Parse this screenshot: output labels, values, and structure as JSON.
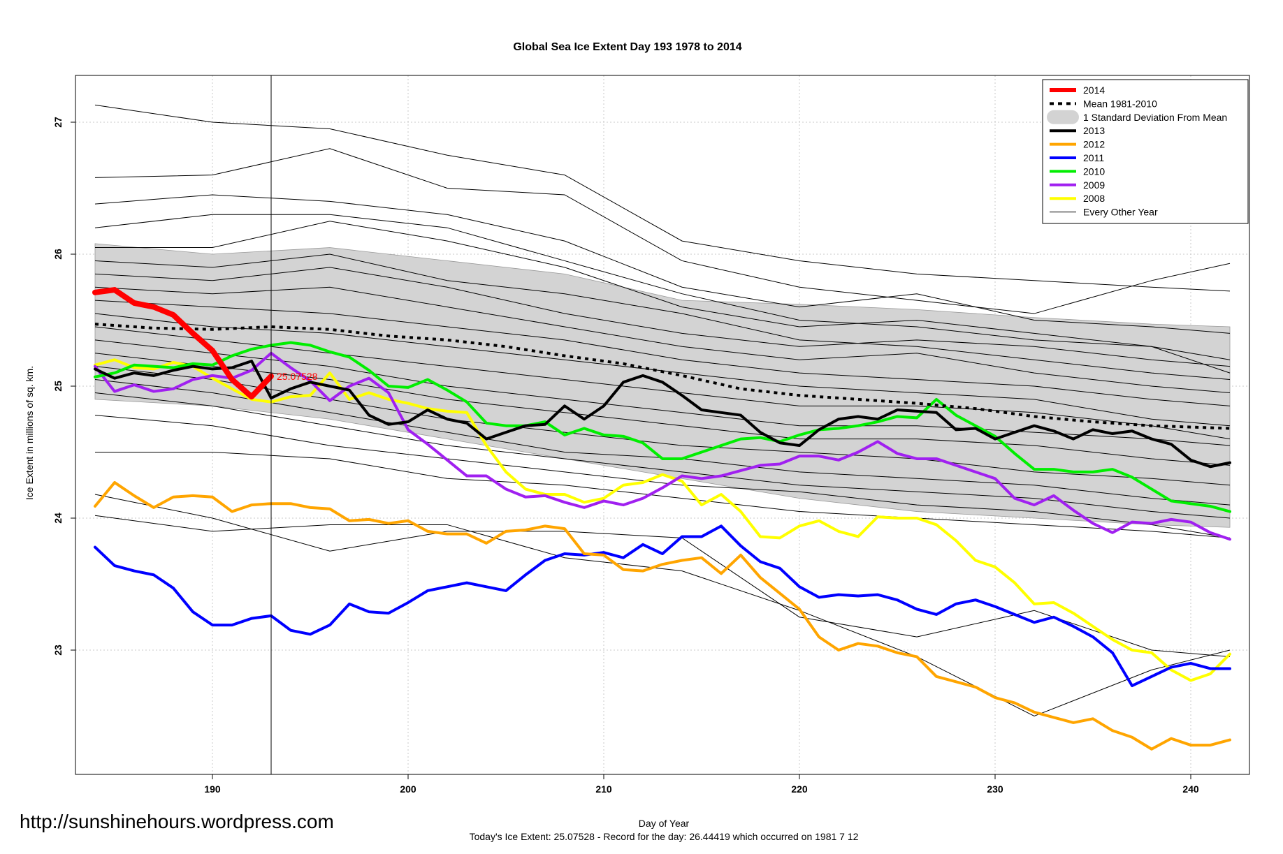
{
  "chart_data": {
    "type": "line",
    "title": "Global Sea Ice Extent Day 193 1978 to 2014",
    "xlabel": "Day of Year",
    "ylabel": "Ice Extent in millions of sq. km.",
    "xlim": [
      184,
      242
    ],
    "ylim": [
      22.1,
      27.4
    ],
    "xticks": [
      190,
      200,
      210,
      220,
      230,
      240
    ],
    "yticks": [
      23,
      24,
      25,
      26,
      27
    ],
    "grid": true,
    "legend_position": "top-right",
    "current_day": 193,
    "annotation": {
      "x": 193,
      "y": 25.07528,
      "text": "25.07528",
      "color": "#ff0000"
    },
    "url_text": "http://sunshinehours.wordpress.com",
    "footer": "Today's Ice Extent: 25.07528  - Record for the day: 26.44419 which occurred on 1981 7 12",
    "std_band": {
      "name": "1 Standard Deviation From Mean",
      "color": "#d3d3d3",
      "x": [
        184,
        190,
        196,
        202,
        208,
        214,
        220,
        226,
        232,
        238,
        242
      ],
      "upper": [
        26.08,
        26.0,
        26.05,
        25.95,
        25.85,
        25.65,
        25.62,
        25.58,
        25.52,
        25.47,
        25.45
      ],
      "lower": [
        24.9,
        24.85,
        24.75,
        24.6,
        24.45,
        24.3,
        24.15,
        24.05,
        24.0,
        23.95,
        23.93
      ]
    },
    "series": [
      {
        "name": "2014",
        "color": "#ff0000",
        "width": 8,
        "dash": "",
        "x": [
          184,
          185,
          186,
          187,
          188,
          189,
          190,
          191,
          192,
          193
        ],
        "y": [
          25.71,
          25.73,
          25.63,
          25.6,
          25.54,
          25.4,
          25.27,
          25.05,
          24.92,
          25.07528
        ]
      },
      {
        "name": "Mean 1981-2010",
        "color": "#000000",
        "width": 4,
        "dash": "5,6",
        "x": [
          184,
          187,
          190,
          193,
          196,
          199,
          202,
          205,
          208,
          211,
          214,
          217,
          220,
          223,
          226,
          229,
          232,
          235,
          238,
          242
        ],
        "y": [
          25.47,
          25.44,
          25.43,
          25.45,
          25.43,
          25.38,
          25.35,
          25.3,
          25.23,
          25.17,
          25.08,
          24.98,
          24.93,
          24.9,
          24.87,
          24.83,
          24.77,
          24.73,
          24.7,
          24.68
        ]
      },
      {
        "name": "1 Standard Deviation From Mean",
        "color": "#d3d3d3",
        "width": 14,
        "dash": "",
        "band": true
      },
      {
        "name": "2013",
        "color": "#000000",
        "width": 4,
        "dash": "",
        "x": [
          184,
          185,
          186,
          187,
          188,
          189,
          190,
          191,
          192,
          193,
          194,
          195,
          196,
          197,
          198,
          199,
          200,
          201,
          202,
          203,
          204,
          205,
          206,
          207,
          208,
          209,
          210,
          211,
          212,
          213,
          214,
          215,
          216,
          217,
          218,
          219,
          220,
          221,
          222,
          223,
          224,
          225,
          226,
          227,
          228,
          229,
          230,
          231,
          232,
          233,
          234,
          235,
          236,
          237,
          238,
          239,
          240,
          241,
          242
        ],
        "y": [
          25.13,
          25.06,
          25.1,
          25.08,
          25.12,
          25.15,
          25.13,
          25.14,
          25.19,
          24.91,
          24.98,
          25.03,
          25.0,
          24.97,
          24.78,
          24.71,
          24.73,
          24.82,
          24.75,
          24.72,
          24.6,
          24.65,
          24.7,
          24.71,
          24.85,
          24.75,
          24.85,
          25.03,
          25.08,
          25.03,
          24.93,
          24.82,
          24.8,
          24.78,
          24.65,
          24.57,
          24.55,
          24.67,
          24.75,
          24.77,
          24.75,
          24.82,
          24.81,
          24.8,
          24.67,
          24.68,
          24.6,
          24.65,
          24.7,
          24.66,
          24.6,
          24.67,
          24.64,
          24.66,
          24.6,
          24.56,
          24.44,
          24.39,
          24.42
        ]
      },
      {
        "name": "2012",
        "color": "#ffa500",
        "width": 4,
        "dash": "",
        "x": [
          184,
          185,
          186,
          187,
          188,
          189,
          190,
          191,
          192,
          193,
          194,
          195,
          196,
          197,
          198,
          199,
          200,
          201,
          202,
          203,
          204,
          205,
          206,
          207,
          208,
          209,
          210,
          211,
          212,
          213,
          214,
          215,
          216,
          217,
          218,
          219,
          220,
          221,
          222,
          223,
          224,
          225,
          226,
          227,
          228,
          229,
          230,
          231,
          232,
          233,
          234,
          235,
          236,
          237,
          238,
          239,
          240,
          241,
          242
        ],
        "y": [
          24.09,
          24.27,
          24.17,
          24.08,
          24.16,
          24.17,
          24.16,
          24.05,
          24.1,
          24.11,
          24.11,
          24.08,
          24.07,
          23.98,
          23.99,
          23.96,
          23.98,
          23.9,
          23.88,
          23.88,
          23.81,
          23.9,
          23.91,
          23.94,
          23.92,
          23.73,
          23.72,
          23.61,
          23.6,
          23.65,
          23.68,
          23.7,
          23.58,
          23.72,
          23.55,
          23.43,
          23.31,
          23.1,
          23.0,
          23.05,
          23.03,
          22.98,
          22.95,
          22.8,
          22.76,
          22.72,
          22.64,
          22.6,
          22.53,
          22.49,
          22.45,
          22.48,
          22.39,
          22.34,
          22.25,
          22.33,
          22.28,
          22.28,
          22.32
        ]
      },
      {
        "name": "2011",
        "color": "#0000ff",
        "width": 4,
        "dash": "",
        "x": [
          184,
          185,
          186,
          187,
          188,
          189,
          190,
          191,
          192,
          193,
          194,
          195,
          196,
          197,
          198,
          199,
          200,
          201,
          202,
          203,
          204,
          205,
          206,
          207,
          208,
          209,
          210,
          211,
          212,
          213,
          214,
          215,
          216,
          217,
          218,
          219,
          220,
          221,
          222,
          223,
          224,
          225,
          226,
          227,
          228,
          229,
          230,
          231,
          232,
          233,
          234,
          235,
          236,
          237,
          238,
          239,
          240,
          241,
          242
        ],
        "y": [
          23.78,
          23.64,
          23.6,
          23.57,
          23.47,
          23.29,
          23.19,
          23.19,
          23.24,
          23.26,
          23.15,
          23.12,
          23.19,
          23.35,
          23.29,
          23.28,
          23.36,
          23.45,
          23.48,
          23.51,
          23.48,
          23.45,
          23.57,
          23.68,
          23.73,
          23.72,
          23.74,
          23.7,
          23.8,
          23.73,
          23.86,
          23.86,
          23.94,
          23.79,
          23.67,
          23.62,
          23.48,
          23.4,
          23.42,
          23.41,
          23.42,
          23.38,
          23.31,
          23.27,
          23.35,
          23.38,
          23.33,
          23.27,
          23.21,
          23.25,
          23.18,
          23.1,
          22.98,
          22.73,
          22.8,
          22.87,
          22.9,
          22.86,
          22.86
        ]
      },
      {
        "name": "2010",
        "color": "#00ee00",
        "width": 4,
        "dash": "",
        "x": [
          184,
          185,
          186,
          187,
          188,
          189,
          190,
          191,
          192,
          193,
          194,
          195,
          196,
          197,
          198,
          199,
          200,
          201,
          202,
          203,
          204,
          205,
          206,
          207,
          208,
          209,
          210,
          211,
          212,
          213,
          214,
          215,
          216,
          217,
          218,
          219,
          220,
          221,
          222,
          223,
          224,
          225,
          226,
          227,
          228,
          229,
          230,
          231,
          232,
          233,
          234,
          235,
          236,
          237,
          238,
          239,
          240,
          241,
          242
        ],
        "y": [
          25.07,
          25.1,
          25.16,
          25.15,
          25.14,
          25.17,
          25.16,
          25.23,
          25.28,
          25.31,
          25.33,
          25.31,
          25.26,
          25.22,
          25.12,
          25.0,
          24.99,
          25.05,
          24.97,
          24.88,
          24.72,
          24.7,
          24.7,
          24.73,
          24.63,
          24.68,
          24.63,
          24.62,
          24.57,
          24.45,
          24.45,
          24.5,
          24.55,
          24.6,
          24.61,
          24.58,
          24.63,
          24.67,
          24.68,
          24.7,
          24.73,
          24.77,
          24.76,
          24.9,
          24.78,
          24.7,
          24.62,
          24.49,
          24.37,
          24.37,
          24.35,
          24.35,
          24.37,
          24.31,
          24.22,
          24.13,
          24.11,
          24.09,
          24.05
        ]
      },
      {
        "name": "2009",
        "color": "#a020f0",
        "width": 4,
        "dash": "",
        "x": [
          184,
          185,
          186,
          187,
          188,
          189,
          190,
          191,
          192,
          193,
          194,
          195,
          196,
          197,
          198,
          199,
          200,
          201,
          202,
          203,
          204,
          205,
          206,
          207,
          208,
          209,
          210,
          211,
          212,
          213,
          214,
          215,
          216,
          217,
          218,
          219,
          220,
          221,
          222,
          223,
          224,
          225,
          226,
          227,
          228,
          229,
          230,
          231,
          232,
          233,
          234,
          235,
          236,
          237,
          238,
          239,
          240,
          241,
          242
        ],
        "y": [
          25.15,
          24.96,
          25.01,
          24.96,
          24.98,
          25.05,
          25.08,
          25.06,
          25.12,
          25.25,
          25.14,
          25.04,
          24.89,
          25.0,
          25.06,
          24.95,
          24.67,
          24.56,
          24.44,
          24.32,
          24.32,
          24.22,
          24.16,
          24.17,
          24.12,
          24.08,
          24.13,
          24.1,
          24.15,
          24.23,
          24.32,
          24.3,
          24.32,
          24.36,
          24.4,
          24.41,
          24.47,
          24.47,
          24.44,
          24.5,
          24.58,
          24.49,
          24.45,
          24.45,
          24.4,
          24.35,
          24.3,
          24.15,
          24.1,
          24.17,
          24.06,
          23.96,
          23.89,
          23.97,
          23.96,
          23.99,
          23.97,
          23.89,
          23.84
        ]
      },
      {
        "name": "2008",
        "color": "#ffff00",
        "width": 4,
        "dash": "",
        "x": [
          184,
          185,
          186,
          187,
          188,
          189,
          190,
          191,
          192,
          193,
          194,
          195,
          196,
          197,
          198,
          199,
          200,
          201,
          202,
          203,
          204,
          205,
          206,
          207,
          208,
          209,
          210,
          211,
          212,
          213,
          214,
          215,
          216,
          217,
          218,
          219,
          220,
          221,
          222,
          223,
          224,
          225,
          226,
          227,
          228,
          229,
          230,
          231,
          232,
          233,
          234,
          235,
          236,
          237,
          238,
          239,
          240,
          241,
          242
        ],
        "y": [
          25.16,
          25.2,
          25.14,
          25.13,
          25.18,
          25.15,
          25.06,
          24.98,
          24.9,
          24.88,
          24.92,
          24.93,
          25.1,
          24.9,
          24.95,
          24.9,
          24.87,
          24.83,
          24.81,
          24.8,
          24.55,
          24.35,
          24.22,
          24.18,
          24.18,
          24.12,
          24.15,
          24.25,
          24.27,
          24.33,
          24.28,
          24.1,
          24.18,
          24.05,
          23.86,
          23.85,
          23.94,
          23.98,
          23.9,
          23.86,
          24.01,
          24.0,
          24.0,
          23.95,
          23.83,
          23.68,
          23.63,
          23.51,
          23.35,
          23.36,
          23.28,
          23.18,
          23.08,
          23.0,
          22.98,
          22.85,
          22.77,
          22.82,
          22.97
        ]
      },
      {
        "name": "Every Other Year",
        "color": "#000000",
        "width": 1,
        "dash": "",
        "legend_only": true
      }
    ],
    "background_years": {
      "color": "#000000",
      "width": 1,
      "x": [
        184,
        190,
        196,
        202,
        208,
        214,
        220,
        226,
        232,
        238,
        242
      ],
      "lines": [
        [
          27.13,
          27.0,
          26.95,
          26.75,
          26.6,
          26.1,
          25.95,
          25.85,
          25.8,
          25.75,
          25.72
        ],
        [
          26.58,
          26.6,
          26.8,
          26.5,
          26.45,
          25.95,
          25.75,
          25.65,
          25.55,
          25.8,
          25.93
        ],
        [
          26.38,
          26.45,
          26.4,
          26.3,
          26.1,
          25.75,
          25.6,
          25.7,
          25.5,
          25.45,
          25.4
        ],
        [
          26.2,
          26.3,
          26.3,
          26.2,
          25.95,
          25.7,
          25.5,
          25.45,
          25.35,
          25.3,
          25.2
        ],
        [
          26.05,
          26.05,
          26.25,
          26.1,
          25.9,
          25.6,
          25.45,
          25.5,
          25.4,
          25.3,
          25.1
        ],
        [
          25.95,
          25.9,
          26.0,
          25.8,
          25.7,
          25.55,
          25.35,
          25.3,
          25.2,
          25.1,
          25.05
        ],
        [
          25.85,
          25.8,
          25.9,
          25.75,
          25.55,
          25.4,
          25.3,
          25.35,
          25.3,
          25.2,
          25.15
        ],
        [
          25.75,
          25.7,
          25.75,
          25.6,
          25.45,
          25.3,
          25.2,
          25.25,
          25.1,
          25.0,
          24.95
        ],
        [
          25.65,
          25.6,
          25.55,
          25.45,
          25.35,
          25.2,
          25.1,
          25.05,
          25.0,
          24.9,
          24.85
        ],
        [
          25.55,
          25.45,
          25.4,
          25.3,
          25.2,
          25.1,
          25.0,
          24.95,
          24.9,
          24.75,
          24.7
        ],
        [
          25.45,
          25.35,
          25.25,
          25.15,
          25.05,
          24.95,
          24.85,
          24.85,
          24.8,
          24.7,
          24.6
        ],
        [
          25.35,
          25.25,
          25.15,
          25.0,
          24.9,
          24.8,
          24.7,
          24.7,
          24.65,
          24.6,
          24.55
        ],
        [
          25.25,
          25.15,
          25.05,
          24.9,
          24.8,
          24.7,
          24.6,
          24.6,
          24.55,
          24.45,
          24.4
        ],
        [
          25.15,
          25.05,
          24.9,
          24.75,
          24.65,
          24.55,
          24.5,
          24.45,
          24.35,
          24.3,
          24.25
        ],
        [
          25.05,
          24.95,
          24.8,
          24.65,
          24.5,
          24.45,
          24.35,
          24.3,
          24.25,
          24.15,
          24.1
        ],
        [
          24.95,
          24.85,
          24.7,
          24.55,
          24.45,
          24.35,
          24.25,
          24.2,
          24.15,
          24.05,
          24.0
        ],
        [
          24.78,
          24.7,
          24.55,
          24.45,
          24.35,
          24.25,
          24.2,
          24.1,
          24.05,
          23.95,
          23.85
        ],
        [
          24.5,
          24.5,
          24.45,
          24.3,
          24.25,
          24.15,
          24.05,
          24.0,
          23.95,
          23.9,
          23.85
        ],
        [
          24.18,
          24.0,
          23.75,
          23.9,
          23.9,
          23.85,
          23.25,
          23.1,
          23.3,
          23.0,
          22.95
        ],
        [
          24.02,
          23.9,
          23.95,
          23.95,
          23.7,
          23.6,
          23.3,
          22.95,
          22.5,
          22.85,
          23.0
        ]
      ]
    }
  }
}
